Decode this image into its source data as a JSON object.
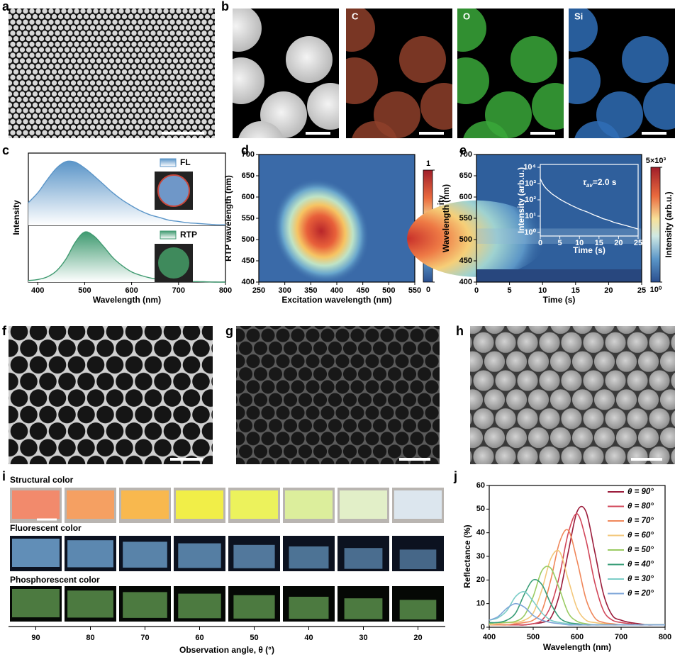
{
  "panel_labels": [
    "a",
    "b",
    "c",
    "d",
    "e",
    "f",
    "g",
    "h",
    "i",
    "j"
  ],
  "panel_b": {
    "maps": [
      "C",
      "O",
      "Si"
    ]
  },
  "chart_data": [
    {
      "type": "area",
      "x": [
        380,
        400,
        420,
        440,
        460,
        480,
        500,
        520,
        540,
        560,
        580,
        600,
        620,
        640,
        660,
        680,
        700,
        720,
        740,
        760,
        780,
        800
      ],
      "xlim": [
        380,
        800
      ],
      "xticks": [
        400,
        500,
        600,
        700,
        800
      ],
      "xlabel": "Wavelength (nm)",
      "ylabel": "Intensity",
      "series": [
        {
          "name": "FL",
          "color": "#5b95c8",
          "values": [
            0.35,
            0.5,
            0.7,
            0.88,
            0.98,
            0.97,
            0.88,
            0.76,
            0.63,
            0.5,
            0.39,
            0.3,
            0.22,
            0.16,
            0.12,
            0.08,
            0.06,
            0.04,
            0.03,
            0.02,
            0.01,
            0.01
          ]
        },
        {
          "name": "RTP",
          "color": "#3f9a70",
          "values": [
            0.03,
            0.05,
            0.1,
            0.22,
            0.45,
            0.78,
            0.98,
            0.9,
            0.7,
            0.48,
            0.32,
            0.2,
            0.13,
            0.08,
            0.05,
            0.03,
            0.02,
            0.01,
            0.01,
            0.005,
            0,
            0
          ]
        }
      ]
    },
    {
      "type": "heatmap",
      "xlabel": "Excitation wavelength (nm)",
      "ylabel": "RTP wavelength (nm)",
      "xlim": [
        250,
        550
      ],
      "xticks": [
        250,
        300,
        350,
        400,
        450,
        500,
        550
      ],
      "ylim": [
        400,
        700
      ],
      "yticks": [
        400,
        450,
        500,
        550,
        600,
        650,
        700
      ],
      "colorbar_label": "Norm. intensity",
      "clim": [
        0,
        1
      ],
      "cticks": [
        0,
        1
      ]
    },
    {
      "type": "heatmap",
      "xlabel": "Time (s)",
      "ylabel": "Wavelength (nm)",
      "xlim": [
        0,
        25
      ],
      "xticks": [
        0,
        5,
        10,
        15,
        20,
        25
      ],
      "ylim": [
        400,
        700
      ],
      "yticks": [
        400,
        450,
        500,
        550,
        600,
        650,
        700
      ],
      "colorbar_label": "Intensity (arb.u.)",
      "clim": [
        1,
        5000
      ],
      "clog": true,
      "cticks": [
        {
          "value": 1,
          "label": "10⁰"
        },
        {
          "value": 5000,
          "label": "5×10³"
        }
      ]
    },
    {
      "type": "line",
      "inset": true,
      "x": [
        0,
        0.5,
        1,
        1.5,
        2,
        3,
        4,
        5,
        6,
        7,
        8,
        9,
        10,
        11,
        12,
        13,
        14,
        15,
        16,
        17,
        18,
        19,
        20,
        21,
        22,
        23,
        24,
        25
      ],
      "values": [
        2000,
        1100,
        700,
        500,
        380,
        230,
        160,
        110,
        80,
        60,
        45,
        35,
        27,
        22,
        18,
        14,
        11,
        9,
        7,
        6,
        5,
        4,
        3.5,
        3,
        2.6,
        2.2,
        1.9,
        1.6
      ],
      "color": "#ffffff",
      "xlim": [
        0,
        25
      ],
      "xticks": [
        0,
        5,
        10,
        15,
        20,
        25
      ],
      "ylim": [
        0.6,
        15000
      ],
      "log_y": true,
      "yticks": [
        {
          "value": 1,
          "label": "10⁰"
        },
        {
          "value": 10,
          "label": "10¹"
        },
        {
          "value": 100,
          "label": "10²"
        },
        {
          "value": 1000,
          "label": "10³"
        },
        {
          "value": 10000,
          "label": "10⁴"
        }
      ],
      "xlabel": "Time (s)",
      "ylabel": "Intensity (arb.u.)",
      "annotation": {
        "symbol": "τ",
        "subscript": "av",
        "text": "=2.0 s"
      }
    },
    {
      "type": "line",
      "x": [
        400,
        420,
        440,
        460,
        480,
        500,
        520,
        540,
        560,
        580,
        600,
        620,
        640,
        660,
        680,
        700,
        720,
        740,
        760,
        780,
        800
      ],
      "xlim": [
        400,
        800
      ],
      "xticks": [
        400,
        500,
        600,
        700,
        800
      ],
      "ylim": [
        0,
        60
      ],
      "yticks": [
        0,
        10,
        20,
        30,
        40,
        50,
        60
      ],
      "xlabel": "Wavelength (nm)",
      "ylabel": "Reflectance (%)",
      "legend": "upper right",
      "series": [
        {
          "name": "θ = 90°",
          "color": "#9b1b3a",
          "values": [
            1,
            1,
            1,
            1,
            1,
            1.5,
            2,
            4,
            14,
            32,
            49,
            49,
            32,
            14,
            5,
            3,
            2,
            1.5,
            1,
            1,
            1
          ]
        },
        {
          "name": "θ = 80°",
          "color": "#d2475a",
          "values": [
            1,
            1,
            1,
            1,
            1,
            1.5,
            3,
            9,
            22,
            40,
            48,
            37,
            19,
            7,
            3,
            2,
            1.5,
            1,
            1,
            1,
            1
          ]
        },
        {
          "name": "θ = 70°",
          "color": "#f0875a",
          "values": [
            1,
            1,
            1,
            1.5,
            2,
            3,
            7,
            20,
            36,
            41,
            28,
            12,
            4,
            2,
            1.5,
            1,
            1,
            1,
            1,
            1,
            1
          ]
        },
        {
          "name": "θ = 60°",
          "color": "#f3c77a",
          "values": [
            1,
            1.5,
            2,
            2,
            3,
            6,
            16,
            29,
            32,
            20,
            8,
            3,
            2,
            1.5,
            1,
            1,
            1,
            1,
            1,
            1,
            1
          ]
        },
        {
          "name": "θ = 50°",
          "color": "#9acb62",
          "values": [
            1.5,
            2,
            2,
            2.5,
            5,
            13,
            24,
            25,
            16,
            6,
            2.5,
            1.5,
            1,
            1,
            1,
            1,
            1,
            1,
            1,
            1,
            1
          ]
        },
        {
          "name": "θ = 40°",
          "color": "#3a9e78",
          "values": [
            2,
            2,
            3,
            6,
            14,
            20,
            18,
            10,
            4,
            2,
            1.5,
            1,
            1,
            1,
            1,
            1,
            1,
            1,
            1,
            1,
            1
          ]
        },
        {
          "name": "θ = 30°",
          "color": "#7ccdc8",
          "values": [
            3,
            4,
            7,
            13,
            15,
            11,
            6,
            3,
            2,
            1.5,
            1,
            1,
            1,
            1,
            1,
            1,
            1,
            1,
            1,
            1,
            1
          ]
        },
        {
          "name": "θ = 20°",
          "color": "#7ea6d8",
          "values": [
            3,
            4.5,
            8,
            10,
            8.5,
            5,
            3,
            2,
            1.5,
            1,
            1,
            1,
            1,
            1,
            1,
            1,
            1,
            1,
            1,
            1,
            1
          ]
        }
      ]
    }
  ],
  "panel_i": {
    "rows": [
      "Structural color",
      "Fluorescent color",
      "Phosphorescent color"
    ],
    "angles": [
      90,
      80,
      70,
      60,
      50,
      40,
      30,
      20
    ],
    "xlabel": "Observation angle, θ (°)"
  }
}
